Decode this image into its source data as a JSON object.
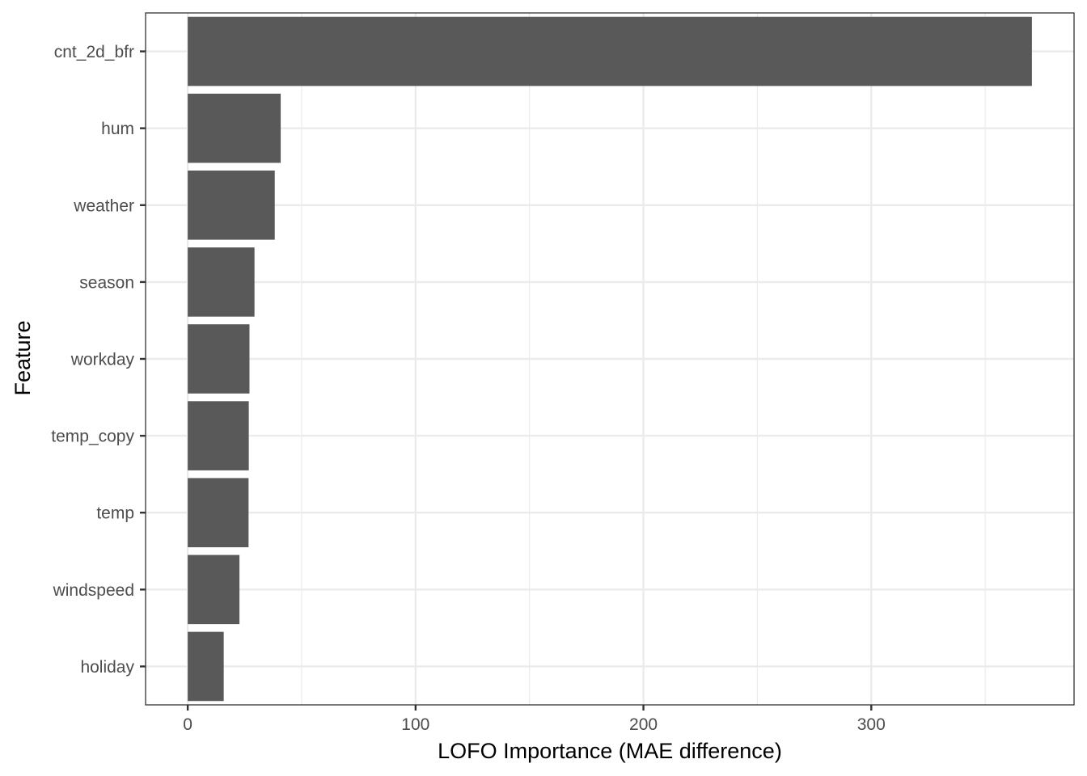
{
  "chart_data": {
    "type": "bar",
    "orientation": "horizontal",
    "categories": [
      "cnt_2d_bfr",
      "hum",
      "weather",
      "season",
      "workday",
      "temp_copy",
      "temp",
      "windspeed",
      "holiday"
    ],
    "values": [
      370.5,
      40.8,
      38.2,
      29.3,
      27.1,
      26.8,
      26.7,
      22.7,
      15.8
    ],
    "xlabel": "LOFO Importance (MAE difference)",
    "ylabel": "Feature",
    "xlim": [
      -18.5,
      389.0
    ],
    "xticks": [
      0,
      100,
      200,
      300
    ],
    "xtick_labels": [
      "0",
      "100",
      "200",
      "300"
    ],
    "minor_xticks": [
      50,
      150,
      250,
      350
    ],
    "grid": true,
    "bar_color": "#595959",
    "grid_color": "#ebebeb",
    "theme": "bw"
  }
}
